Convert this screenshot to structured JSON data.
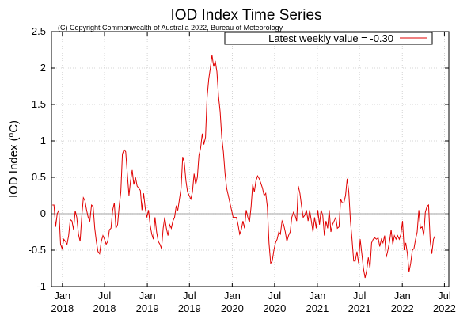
{
  "chart_data": {
    "type": "line",
    "title": "IOD Index Time Series",
    "subtitle": "(C) Copyright Commonwealth of Australia 2022, Bureau of Meteorology",
    "ylabel": "IOD Index (°C)",
    "xlabel": "",
    "ylim": [
      -1,
      2.5
    ],
    "yticks": [
      -1,
      -0.5,
      0,
      0.5,
      1,
      1.5,
      2,
      2.5
    ],
    "ytick_labels": [
      "-1",
      "-0.5",
      "0",
      "0.5",
      "1",
      "1.5",
      "2",
      "2.5"
    ],
    "xlim": [
      "2017-11-15",
      "2022-07-20"
    ],
    "xticks": [
      {
        "date": "2018-01-01",
        "top": "Jan",
        "bottom": "2018"
      },
      {
        "date": "2018-07-01",
        "top": "Jul",
        "bottom": "2018"
      },
      {
        "date": "2019-01-01",
        "top": "Jan",
        "bottom": "2019"
      },
      {
        "date": "2019-07-01",
        "top": "Jul",
        "bottom": "2019"
      },
      {
        "date": "2020-01-01",
        "top": "Jan",
        "bottom": "2020"
      },
      {
        "date": "2020-07-01",
        "top": "Jul",
        "bottom": "2020"
      },
      {
        "date": "2021-01-01",
        "top": "Jan",
        "bottom": "2021"
      },
      {
        "date": "2021-07-01",
        "top": "Jul",
        "bottom": "2021"
      },
      {
        "date": "2022-01-01",
        "top": "Jan",
        "bottom": "2022"
      },
      {
        "date": "2022-07-01",
        "top": "Jul",
        "bottom": "2022"
      }
    ],
    "grid": true,
    "legend_position": "top-right",
    "series": [
      {
        "name": "Latest weekly value = -0.30",
        "color": "#e00000",
        "points": [
          [
            "2017-11-19",
            0.12
          ],
          [
            "2017-11-26",
            0.12
          ],
          [
            "2017-12-03",
            -0.18
          ],
          [
            "2017-12-10",
            0.0
          ],
          [
            "2017-12-17",
            0.05
          ],
          [
            "2017-12-24",
            -0.42
          ],
          [
            "2017-12-31",
            -0.48
          ],
          [
            "2018-01-07",
            -0.35
          ],
          [
            "2018-01-14",
            -0.38
          ],
          [
            "2018-01-21",
            -0.42
          ],
          [
            "2018-01-28",
            -0.3
          ],
          [
            "2018-02-04",
            -0.08
          ],
          [
            "2018-02-11",
            -0.1
          ],
          [
            "2018-02-18",
            -0.22
          ],
          [
            "2018-02-25",
            0.04
          ],
          [
            "2018-03-04",
            -0.05
          ],
          [
            "2018-03-11",
            -0.28
          ],
          [
            "2018-03-18",
            -0.38
          ],
          [
            "2018-03-25",
            -0.05
          ],
          [
            "2018-04-01",
            0.22
          ],
          [
            "2018-04-08",
            0.18
          ],
          [
            "2018-04-15",
            0.05
          ],
          [
            "2018-04-22",
            -0.05
          ],
          [
            "2018-04-29",
            -0.1
          ],
          [
            "2018-05-06",
            0.12
          ],
          [
            "2018-05-13",
            0.1
          ],
          [
            "2018-05-20",
            -0.2
          ],
          [
            "2018-05-27",
            -0.38
          ],
          [
            "2018-06-03",
            -0.52
          ],
          [
            "2018-06-10",
            -0.55
          ],
          [
            "2018-06-17",
            -0.38
          ],
          [
            "2018-06-24",
            -0.3
          ],
          [
            "2018-07-01",
            -0.35
          ],
          [
            "2018-07-08",
            -0.42
          ],
          [
            "2018-07-15",
            -0.38
          ],
          [
            "2018-07-22",
            -0.22
          ],
          [
            "2018-07-29",
            -0.2
          ],
          [
            "2018-08-05",
            0.05
          ],
          [
            "2018-08-12",
            0.15
          ],
          [
            "2018-08-19",
            -0.2
          ],
          [
            "2018-08-26",
            -0.15
          ],
          [
            "2018-09-02",
            0.1
          ],
          [
            "2018-09-09",
            0.3
          ],
          [
            "2018-09-16",
            0.82
          ],
          [
            "2018-09-23",
            0.88
          ],
          [
            "2018-09-30",
            0.85
          ],
          [
            "2018-10-07",
            0.55
          ],
          [
            "2018-10-14",
            0.25
          ],
          [
            "2018-10-21",
            0.45
          ],
          [
            "2018-10-28",
            0.6
          ],
          [
            "2018-11-04",
            0.4
          ],
          [
            "2018-11-11",
            0.5
          ],
          [
            "2018-11-18",
            0.38
          ],
          [
            "2018-11-25",
            0.35
          ],
          [
            "2018-12-02",
            0.32
          ],
          [
            "2018-12-09",
            0.05
          ],
          [
            "2018-12-16",
            0.28
          ],
          [
            "2018-12-23",
            0.08
          ],
          [
            "2018-12-30",
            -0.05
          ],
          [
            "2019-01-06",
            0.05
          ],
          [
            "2019-01-13",
            -0.15
          ],
          [
            "2019-01-20",
            -0.28
          ],
          [
            "2019-01-27",
            -0.35
          ],
          [
            "2019-02-03",
            -0.05
          ],
          [
            "2019-02-10",
            -0.25
          ],
          [
            "2019-02-17",
            -0.38
          ],
          [
            "2019-02-24",
            -0.42
          ],
          [
            "2019-03-03",
            -0.48
          ],
          [
            "2019-03-10",
            -0.2
          ],
          [
            "2019-03-17",
            -0.05
          ],
          [
            "2019-03-24",
            -0.2
          ],
          [
            "2019-03-31",
            -0.3
          ],
          [
            "2019-04-07",
            -0.15
          ],
          [
            "2019-04-14",
            -0.2
          ],
          [
            "2019-04-21",
            -0.1
          ],
          [
            "2019-04-28",
            -0.05
          ],
          [
            "2019-05-05",
            0.1
          ],
          [
            "2019-05-12",
            0.05
          ],
          [
            "2019-05-19",
            0.2
          ],
          [
            "2019-05-26",
            0.35
          ],
          [
            "2019-06-02",
            0.78
          ],
          [
            "2019-06-09",
            0.7
          ],
          [
            "2019-06-16",
            0.45
          ],
          [
            "2019-06-23",
            0.3
          ],
          [
            "2019-06-30",
            0.25
          ],
          [
            "2019-07-07",
            0.2
          ],
          [
            "2019-07-14",
            0.3
          ],
          [
            "2019-07-21",
            0.55
          ],
          [
            "2019-07-28",
            0.4
          ],
          [
            "2019-08-04",
            0.5
          ],
          [
            "2019-08-11",
            0.8
          ],
          [
            "2019-08-18",
            0.9
          ],
          [
            "2019-08-25",
            1.1
          ],
          [
            "2019-09-01",
            0.95
          ],
          [
            "2019-09-08",
            1.05
          ],
          [
            "2019-09-15",
            1.6
          ],
          [
            "2019-09-22",
            1.85
          ],
          [
            "2019-09-29",
            2.0
          ],
          [
            "2019-10-06",
            2.18
          ],
          [
            "2019-10-13",
            2.02
          ],
          [
            "2019-10-20",
            2.1
          ],
          [
            "2019-10-27",
            1.95
          ],
          [
            "2019-11-03",
            1.62
          ],
          [
            "2019-11-10",
            1.4
          ],
          [
            "2019-11-17",
            1.05
          ],
          [
            "2019-11-24",
            0.85
          ],
          [
            "2019-12-01",
            0.55
          ],
          [
            "2019-12-08",
            0.35
          ],
          [
            "2019-12-15",
            0.25
          ],
          [
            "2019-12-22",
            0.15
          ],
          [
            "2019-12-29",
            0.05
          ],
          [
            "2020-01-05",
            -0.05
          ],
          [
            "2020-01-12",
            -0.05
          ],
          [
            "2020-01-19",
            -0.05
          ],
          [
            "2020-01-26",
            -0.15
          ],
          [
            "2020-02-02",
            -0.28
          ],
          [
            "2020-02-09",
            -0.22
          ],
          [
            "2020-02-16",
            -0.1
          ],
          [
            "2020-02-23",
            -0.2
          ],
          [
            "2020-03-01",
            0.05
          ],
          [
            "2020-03-08",
            -0.05
          ],
          [
            "2020-03-15",
            -0.12
          ],
          [
            "2020-03-22",
            0.1
          ],
          [
            "2020-03-29",
            0.4
          ],
          [
            "2020-04-05",
            0.3
          ],
          [
            "2020-04-12",
            0.45
          ],
          [
            "2020-04-19",
            0.52
          ],
          [
            "2020-04-26",
            0.48
          ],
          [
            "2020-05-03",
            0.42
          ],
          [
            "2020-05-10",
            0.35
          ],
          [
            "2020-05-17",
            0.25
          ],
          [
            "2020-05-24",
            0.28
          ],
          [
            "2020-05-31",
            0.1
          ],
          [
            "2020-06-07",
            -0.4
          ],
          [
            "2020-06-14",
            -0.68
          ],
          [
            "2020-06-21",
            -0.65
          ],
          [
            "2020-06-28",
            -0.5
          ],
          [
            "2020-07-05",
            -0.4
          ],
          [
            "2020-07-12",
            -0.35
          ],
          [
            "2020-07-19",
            -0.25
          ],
          [
            "2020-07-26",
            -0.28
          ],
          [
            "2020-08-02",
            -0.1
          ],
          [
            "2020-08-09",
            -0.15
          ],
          [
            "2020-08-16",
            -0.25
          ],
          [
            "2020-08-23",
            -0.38
          ],
          [
            "2020-08-30",
            -0.3
          ],
          [
            "2020-09-06",
            -0.25
          ],
          [
            "2020-09-13",
            -0.05
          ],
          [
            "2020-09-20",
            0.02
          ],
          [
            "2020-09-27",
            -0.02
          ],
          [
            "2020-10-04",
            -0.1
          ],
          [
            "2020-10-11",
            0.38
          ],
          [
            "2020-10-18",
            0.28
          ],
          [
            "2020-10-25",
            0.1
          ],
          [
            "2020-11-01",
            -0.05
          ],
          [
            "2020-11-08",
            -0.02
          ],
          [
            "2020-11-15",
            0.05
          ],
          [
            "2020-11-22",
            -0.1
          ],
          [
            "2020-11-29",
            0.05
          ],
          [
            "2020-12-06",
            -0.1
          ],
          [
            "2020-12-13",
            -0.25
          ],
          [
            "2020-12-20",
            -0.05
          ],
          [
            "2020-12-27",
            -0.2
          ],
          [
            "2021-01-03",
            0.05
          ],
          [
            "2021-01-10",
            -0.15
          ],
          [
            "2021-01-17",
            0.05
          ],
          [
            "2021-01-24",
            -0.02
          ],
          [
            "2021-01-31",
            -0.3
          ],
          [
            "2021-02-07",
            -0.1
          ],
          [
            "2021-02-14",
            -0.2
          ],
          [
            "2021-02-21",
            0.05
          ],
          [
            "2021-02-28",
            -0.25
          ],
          [
            "2021-03-07",
            -0.15
          ],
          [
            "2021-03-14",
            -0.1
          ],
          [
            "2021-03-21",
            -0.05
          ],
          [
            "2021-03-28",
            -0.2
          ],
          [
            "2021-04-04",
            -0.18
          ],
          [
            "2021-04-11",
            0.2
          ],
          [
            "2021-04-18",
            0.15
          ],
          [
            "2021-04-25",
            0.15
          ],
          [
            "2021-05-02",
            0.25
          ],
          [
            "2021-05-09",
            0.48
          ],
          [
            "2021-05-16",
            0.3
          ],
          [
            "2021-05-23",
            -0.1
          ],
          [
            "2021-05-30",
            -0.35
          ],
          [
            "2021-06-06",
            -0.65
          ],
          [
            "2021-06-13",
            -0.65
          ],
          [
            "2021-06-20",
            -0.52
          ],
          [
            "2021-06-27",
            -0.68
          ],
          [
            "2021-07-04",
            -0.35
          ],
          [
            "2021-07-11",
            -0.55
          ],
          [
            "2021-07-18",
            -0.75
          ],
          [
            "2021-07-25",
            -0.88
          ],
          [
            "2021-08-01",
            -0.78
          ],
          [
            "2021-08-08",
            -0.6
          ],
          [
            "2021-08-15",
            -0.75
          ],
          [
            "2021-08-22",
            -0.4
          ],
          [
            "2021-08-29",
            -0.35
          ],
          [
            "2021-09-05",
            -0.33
          ],
          [
            "2021-09-12",
            -0.35
          ],
          [
            "2021-09-19",
            -0.33
          ],
          [
            "2021-09-26",
            -0.45
          ],
          [
            "2021-10-03",
            -0.35
          ],
          [
            "2021-10-10",
            -0.4
          ],
          [
            "2021-10-17",
            -0.3
          ],
          [
            "2021-10-24",
            -0.6
          ],
          [
            "2021-10-31",
            -0.5
          ],
          [
            "2021-11-07",
            -0.38
          ],
          [
            "2021-11-14",
            -0.22
          ],
          [
            "2021-11-21",
            -0.42
          ],
          [
            "2021-11-28",
            -0.3
          ],
          [
            "2021-12-05",
            -0.35
          ],
          [
            "2021-12-12",
            -0.3
          ],
          [
            "2021-12-19",
            -0.35
          ],
          [
            "2021-12-26",
            -0.28
          ],
          [
            "2022-01-02",
            -0.1
          ],
          [
            "2022-01-09",
            -0.5
          ],
          [
            "2022-01-16",
            -0.4
          ],
          [
            "2022-01-23",
            -0.55
          ],
          [
            "2022-01-30",
            -0.8
          ],
          [
            "2022-02-06",
            -0.68
          ],
          [
            "2022-02-13",
            -0.5
          ],
          [
            "2022-02-20",
            -0.48
          ],
          [
            "2022-02-27",
            -0.35
          ],
          [
            "2022-03-06",
            -0.25
          ],
          [
            "2022-03-13",
            0.05
          ],
          [
            "2022-03-20",
            -0.2
          ],
          [
            "2022-03-27",
            -0.18
          ],
          [
            "2022-04-03",
            -0.3
          ],
          [
            "2022-04-10",
            0.02
          ],
          [
            "2022-04-17",
            0.1
          ],
          [
            "2022-04-24",
            0.12
          ],
          [
            "2022-05-01",
            -0.38
          ],
          [
            "2022-05-08",
            -0.55
          ],
          [
            "2022-05-15",
            -0.35
          ],
          [
            "2022-05-22",
            -0.3
          ]
        ]
      }
    ]
  },
  "colors": {
    "line": "#e00000",
    "grid": "#c8c8c8",
    "zero_line": "#888888",
    "axis": "#000000"
  }
}
